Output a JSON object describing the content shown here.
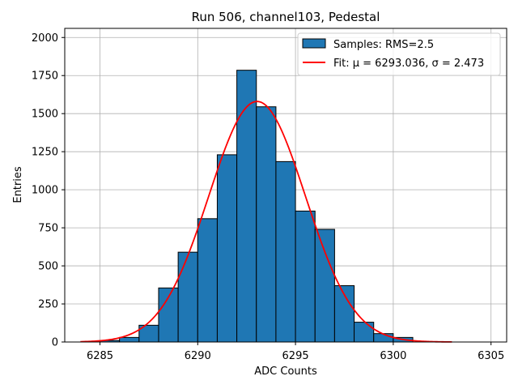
{
  "chart_data": {
    "type": "bar",
    "title": "Run 506, channel103, Pedestal",
    "xlabel": "ADC Counts",
    "ylabel": "Entries",
    "xlim": [
      6283.2,
      6305.8
    ],
    "ylim": [
      0,
      2060
    ],
    "xticks": [
      6285,
      6290,
      6295,
      6300,
      6305
    ],
    "yticks": [
      0,
      250,
      500,
      750,
      1000,
      1250,
      1500,
      1750,
      2000
    ],
    "xtick_labels": [
      "6285",
      "6290",
      "6295",
      "6300",
      "6305"
    ],
    "ytick_labels": [
      "0",
      "250",
      "500",
      "750",
      "1000",
      "1250",
      "1500",
      "1750",
      "2000"
    ],
    "grid": true,
    "legend_position": "top-right",
    "series": [
      {
        "name": "Samples: RMS=2.5",
        "kind": "histogram",
        "color": "#1f77b4",
        "edge_color": "#000000",
        "bins": [
          [
            6285,
            6286,
            10
          ],
          [
            6286,
            6287,
            30
          ],
          [
            6287,
            6288,
            110
          ],
          [
            6288,
            6289,
            355
          ],
          [
            6289,
            6290,
            590
          ],
          [
            6290,
            6291,
            810
          ],
          [
            6291,
            6292,
            1230
          ],
          [
            6292,
            6293,
            1785
          ],
          [
            6293,
            6294,
            1545
          ],
          [
            6294,
            6295,
            1185
          ],
          [
            6295,
            6296,
            860
          ],
          [
            6296,
            6297,
            740
          ],
          [
            6297,
            6298,
            370
          ],
          [
            6298,
            6299,
            130
          ],
          [
            6299,
            6300,
            55
          ],
          [
            6300,
            6301,
            30
          ]
        ]
      },
      {
        "name": "Fit: μ = 6293.036, σ = 2.473",
        "kind": "gaussian",
        "color": "#ff0000",
        "mu": 6293.036,
        "sigma": 2.473,
        "amplitude": 1580,
        "x_range": [
          6284,
          6303
        ]
      }
    ]
  }
}
